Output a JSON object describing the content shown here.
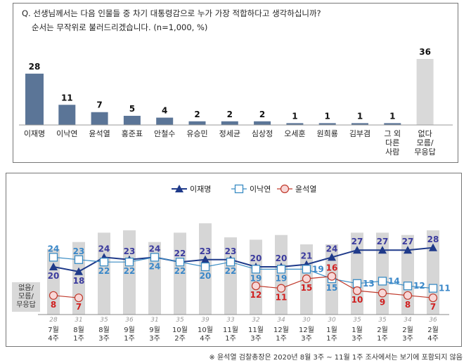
{
  "question": {
    "line1": "Q. 선생님께서는 다음 인물들 중 차기 대통령감으로 누가 가장 적합하다고 생각하십니까?",
    "line2": "순서는 무작위로 불러드리겠습니다. (n=1,000, %)"
  },
  "footnote": "※ 윤석열 검찰총장은 2020년 8월 3주 ~ 11월 1주 조사에서는 보기에 포함되지 않음",
  "colors": {
    "bar": "#5b7597",
    "bar_none": "#d9d9d9",
    "lee_jm": "#1f3a8a",
    "lee_ny": "#3a8cc4",
    "yoon": "#c0392b",
    "gray_bar": "#d6d6d6"
  },
  "chart_data": [
    {
      "type": "bar",
      "title": "",
      "categories": [
        "이재명",
        "이낙연",
        "윤석열",
        "홍준표",
        "안철수",
        "유승민",
        "정세균",
        "심상정",
        "오세훈",
        "원희룡",
        "김부겸",
        "그 외 다른 사람",
        "없다 모름/ 무응답"
      ],
      "category_lines": [
        [
          "이재명"
        ],
        [
          "이낙연"
        ],
        [
          "윤석열"
        ],
        [
          "홍준표"
        ],
        [
          "안철수"
        ],
        [
          "유승민"
        ],
        [
          "정세균"
        ],
        [
          "심상정"
        ],
        [
          "오세훈"
        ],
        [
          "원희룡"
        ],
        [
          "김부겸"
        ],
        [
          "그 외",
          "다른",
          "사람"
        ],
        [
          "없다",
          "모름/",
          "무응답"
        ]
      ],
      "values": [
        28,
        11,
        7,
        5,
        4,
        2,
        2,
        2,
        1,
        1,
        1,
        1,
        36
      ],
      "ylim": [
        0,
        36
      ]
    },
    {
      "type": "line",
      "categories": [
        "7월 4주",
        "8월 1주",
        "8월 3주",
        "9월 1주",
        "9월 3주",
        "10월 2주",
        "10월 4주",
        "11월 1주",
        "11월 3주",
        "12월 1주",
        "12월 3주",
        "1월 1주",
        "1월 3주",
        "2월 1주",
        "2월 3주",
        "2월 4주"
      ],
      "category_lines": [
        [
          "7월",
          "4주"
        ],
        [
          "8월",
          "1주"
        ],
        [
          "8월",
          "3주"
        ],
        [
          "9월",
          "1주"
        ],
        [
          "9월",
          "3주"
        ],
        [
          "10월",
          "2주"
        ],
        [
          "10월",
          "4주"
        ],
        [
          "11월",
          "1주"
        ],
        [
          "11월",
          "3주"
        ],
        [
          "12월",
          "1주"
        ],
        [
          "12월",
          "3주"
        ],
        [
          "1월",
          "1주"
        ],
        [
          "1월",
          "3주"
        ],
        [
          "2월",
          "1주"
        ],
        [
          "2월",
          "3주"
        ],
        [
          "2월",
          "4주"
        ]
      ],
      "series": [
        {
          "name": "이재명",
          "marker": "triangle",
          "values": [
            20,
            18,
            24,
            23,
            24,
            22,
            23,
            23,
            20,
            20,
            21,
            24,
            27,
            27,
            27,
            28
          ]
        },
        {
          "name": "이낙연",
          "marker": "square",
          "values": [
            24,
            23,
            22,
            22,
            24,
            22,
            20,
            22,
            19,
            19,
            19,
            15,
            13,
            14,
            12,
            11
          ]
        },
        {
          "name": "윤석열",
          "marker": "circle",
          "values": [
            8,
            7,
            null,
            null,
            null,
            null,
            null,
            null,
            12,
            11,
            15,
            16,
            10,
            9,
            8,
            7
          ]
        }
      ],
      "bar_series": {
        "name": "없음/ 모름/ 무응답",
        "label_lines": [
          "없음/",
          "모름/",
          "무응답"
        ],
        "values": [
          28,
          31,
          35,
          36,
          31,
          35,
          39,
          33,
          32,
          34,
          30,
          30,
          35,
          35,
          34,
          36
        ]
      },
      "ylim": [
        0,
        40
      ],
      "legend": "top-center"
    }
  ]
}
